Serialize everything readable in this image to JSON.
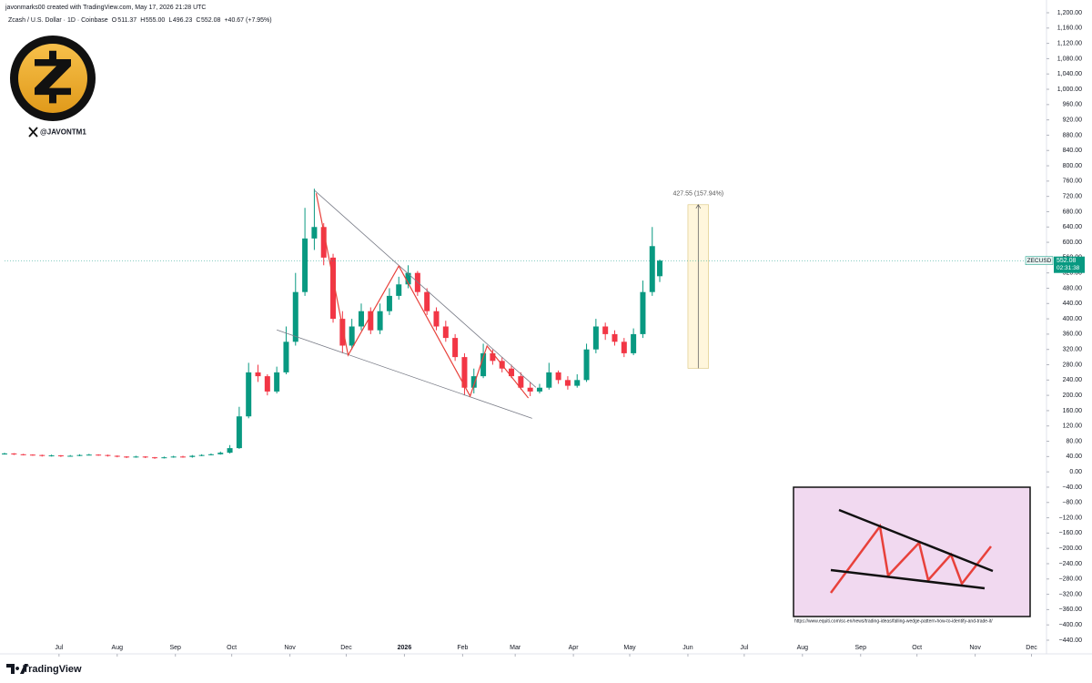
{
  "attribution": "javonmarks00 created with TradingView.com, May 17, 2026 21:28 UTC",
  "handle": "@JAVONTM1",
  "brand": "TradingView",
  "source_url": "https://www.equiti.com/sc-en/news/trading-ideas/falling-wedge-pattern-how-to-identify-and-trade-it/",
  "chart_data": {
    "type": "candlestick",
    "title": "Zcash / U.S. Dollar · 1D · Coinbase",
    "legend": {
      "items": [
        {
          "key": "O",
          "value": "511.37"
        },
        {
          "key": "H",
          "value": "555.00"
        },
        {
          "key": "L",
          "value": "496.23"
        },
        {
          "key": "C",
          "value": "552.08"
        }
      ],
      "change": "+40.67 (+7.95%)"
    },
    "price_label": {
      "symbol": "ZECUSD",
      "price": "552.08",
      "countdown": "02:31:38"
    },
    "colors": {
      "up": "#089981",
      "down": "#f23645"
    },
    "grid": false,
    "xlim": [
      "2025-06-02",
      "2026-12-09"
    ],
    "ylim": [
      -440,
      1200
    ],
    "xticks": [
      {
        "value": "2025-07-01",
        "label": "Jul"
      },
      {
        "value": "2025-08-01",
        "label": "Aug"
      },
      {
        "value": "2025-09-01",
        "label": "Sep"
      },
      {
        "value": "2025-10-01",
        "label": "Oct"
      },
      {
        "value": "2025-11-01",
        "label": "Nov"
      },
      {
        "value": "2025-12-01",
        "label": "Dec"
      },
      {
        "value": "2026-01-01",
        "label": "2026"
      },
      {
        "value": "2026-02-01",
        "label": "Feb"
      },
      {
        "value": "2026-03-01",
        "label": "Mar"
      },
      {
        "value": "2026-04-01",
        "label": "Apr"
      },
      {
        "value": "2026-05-01",
        "label": "May"
      },
      {
        "value": "2026-06-01",
        "label": "Jun"
      },
      {
        "value": "2026-07-01",
        "label": "Jul"
      },
      {
        "value": "2026-08-01",
        "label": "Aug"
      },
      {
        "value": "2026-09-01",
        "label": "Sep"
      },
      {
        "value": "2026-10-01",
        "label": "Oct"
      },
      {
        "value": "2026-11-01",
        "label": "Nov"
      },
      {
        "value": "2026-12-01",
        "label": "Dec"
      }
    ],
    "yticks": [
      {
        "value": 1200,
        "label": "1,200.00"
      },
      {
        "value": 1160,
        "label": "1,160.00"
      },
      {
        "value": 1120,
        "label": "1,120.00"
      },
      {
        "value": 1080,
        "label": "1,080.00"
      },
      {
        "value": 1040,
        "label": "1,040.00"
      },
      {
        "value": 1000,
        "label": "1,000.00"
      },
      {
        "value": 960,
        "label": "960.00"
      },
      {
        "value": 920,
        "label": "920.00"
      },
      {
        "value": 880,
        "label": "880.00"
      },
      {
        "value": 840,
        "label": "840.00"
      },
      {
        "value": 800,
        "label": "800.00"
      },
      {
        "value": 760,
        "label": "760.00"
      },
      {
        "value": 720,
        "label": "720.00"
      },
      {
        "value": 680,
        "label": "680.00"
      },
      {
        "value": 640,
        "label": "640.00"
      },
      {
        "value": 600,
        "label": "600.00"
      },
      {
        "value": 560,
        "label": "560.00"
      },
      {
        "value": 520,
        "label": "520.00"
      },
      {
        "value": 480,
        "label": "480.00"
      },
      {
        "value": 440,
        "label": "440.00"
      },
      {
        "value": 400,
        "label": "400.00"
      },
      {
        "value": 360,
        "label": "360.00"
      },
      {
        "value": 320,
        "label": "320.00"
      },
      {
        "value": 280,
        "label": "280.00"
      },
      {
        "value": 240,
        "label": "240.00"
      },
      {
        "value": 200,
        "label": "200.00"
      },
      {
        "value": 160,
        "label": "160.00"
      },
      {
        "value": 120,
        "label": "120.00"
      },
      {
        "value": 80,
        "label": "80.00"
      },
      {
        "value": 40,
        "label": "40.00"
      },
      {
        "value": 0,
        "label": "0.00"
      },
      {
        "value": -40,
        "label": "−40.00"
      },
      {
        "value": -80,
        "label": "−80.00"
      },
      {
        "value": -120,
        "label": "−120.00"
      },
      {
        "value": -160,
        "label": "−160.00"
      },
      {
        "value": -200,
        "label": "−200.00"
      },
      {
        "value": -240,
        "label": "−240.00"
      },
      {
        "value": -280,
        "label": "−280.00"
      },
      {
        "value": -320,
        "label": "−320.00"
      },
      {
        "value": -360,
        "label": "−360.00"
      },
      {
        "value": -400,
        "label": "−400.00"
      },
      {
        "value": -440,
        "label": "−440.00"
      }
    ],
    "x": [
      "2025-06-02",
      "2025-06-07",
      "2025-06-12",
      "2025-06-17",
      "2025-06-22",
      "2025-06-27",
      "2025-07-02",
      "2025-07-07",
      "2025-07-12",
      "2025-07-17",
      "2025-07-22",
      "2025-07-27",
      "2025-08-01",
      "2025-08-06",
      "2025-08-11",
      "2025-08-16",
      "2025-08-21",
      "2025-08-26",
      "2025-08-31",
      "2025-09-05",
      "2025-09-10",
      "2025-09-15",
      "2025-09-20",
      "2025-09-25",
      "2025-09-30",
      "2025-10-05",
      "2025-10-10",
      "2025-10-15",
      "2025-10-20",
      "2025-10-25",
      "2025-10-30",
      "2025-11-04",
      "2025-11-09",
      "2025-11-14",
      "2025-11-19",
      "2025-11-24",
      "2025-11-29",
      "2025-12-04",
      "2025-12-09",
      "2025-12-14",
      "2025-12-19",
      "2025-12-24",
      "2025-12-29",
      "2026-01-03",
      "2026-01-08",
      "2026-01-13",
      "2026-01-18",
      "2026-01-23",
      "2026-01-28",
      "2026-02-02",
      "2026-02-07",
      "2026-02-12",
      "2026-02-17",
      "2026-02-22",
      "2026-02-27",
      "2026-03-04",
      "2026-03-09",
      "2026-03-14",
      "2026-03-19",
      "2026-03-24",
      "2026-03-29",
      "2026-04-03",
      "2026-04-08",
      "2026-04-13",
      "2026-04-18",
      "2026-04-23",
      "2026-04-28",
      "2026-05-03",
      "2026-05-08",
      "2026-05-13",
      "2026-05-17"
    ],
    "open": [
      47,
      48,
      46,
      45,
      44,
      42,
      43,
      41,
      42,
      44,
      45,
      44,
      42,
      40,
      38,
      40,
      38,
      36,
      38,
      40,
      39,
      42,
      44,
      46,
      50,
      62,
      145,
      260,
      250,
      210,
      260,
      340,
      470,
      610,
      640,
      560,
      400,
      330,
      380,
      420,
      370,
      420,
      460,
      490,
      520,
      470,
      420,
      380,
      350,
      300,
      220,
      250,
      310,
      290,
      270,
      250,
      220,
      210,
      220,
      260,
      240,
      225,
      240,
      320,
      380,
      360,
      340,
      310,
      360,
      470,
      511.37
    ],
    "high": [
      50,
      49,
      47,
      46,
      45,
      45,
      44,
      44,
      46,
      47,
      46,
      45,
      43,
      41,
      42,
      41,
      39,
      40,
      42,
      42,
      44,
      46,
      48,
      53,
      70,
      170,
      285,
      280,
      255,
      275,
      380,
      520,
      690,
      740,
      650,
      570,
      420,
      400,
      440,
      430,
      440,
      480,
      510,
      540,
      525,
      480,
      430,
      395,
      360,
      310,
      270,
      335,
      320,
      300,
      280,
      260,
      235,
      230,
      285,
      265,
      250,
      255,
      335,
      400,
      390,
      370,
      350,
      375,
      500,
      640,
      555
    ],
    "low": [
      45,
      44,
      43,
      42,
      40,
      40,
      39,
      40,
      41,
      43,
      42,
      40,
      38,
      36,
      37,
      36,
      34,
      35,
      37,
      37,
      37,
      41,
      43,
      45,
      48,
      60,
      140,
      235,
      200,
      205,
      255,
      330,
      460,
      580,
      540,
      390,
      310,
      320,
      370,
      360,
      360,
      410,
      450,
      480,
      460,
      410,
      370,
      340,
      290,
      200,
      205,
      245,
      280,
      260,
      245,
      215,
      198,
      205,
      215,
      230,
      215,
      220,
      235,
      310,
      345,
      330,
      300,
      305,
      350,
      460,
      496.23
    ],
    "close": [
      48,
      46,
      45,
      44,
      42,
      43,
      41,
      42,
      44,
      45,
      44,
      42,
      40,
      38,
      40,
      38,
      36,
      38,
      40,
      39,
      42,
      44,
      46,
      50,
      62,
      145,
      260,
      250,
      210,
      260,
      340,
      470,
      610,
      640,
      560,
      400,
      330,
      380,
      420,
      370,
      420,
      460,
      490,
      520,
      470,
      420,
      380,
      350,
      300,
      220,
      250,
      310,
      290,
      270,
      250,
      220,
      210,
      220,
      260,
      240,
      225,
      240,
      320,
      380,
      360,
      340,
      310,
      360,
      470,
      590,
      552.08
    ],
    "measure": {
      "label": "427.55 (157.94%)",
      "x": [
        "2026-06-01",
        "2026-06-12"
      ],
      "values": [
        270.7,
        698.25
      ]
    },
    "trendlines": [
      {
        "x": [
          "2025-11-14",
          "2026-03-12"
        ],
        "values": [
          736,
          221
        ]
      },
      {
        "x": [
          "2025-10-25",
          "2026-03-10"
        ],
        "values": [
          371,
          140
        ]
      }
    ],
    "zigzag": {
      "x": [
        "2025-11-15",
        "2025-12-02",
        "2025-12-29",
        "2026-02-05",
        "2026-02-14",
        "2026-03-08"
      ],
      "values": [
        728,
        305,
        538,
        198,
        329,
        193
      ]
    }
  }
}
